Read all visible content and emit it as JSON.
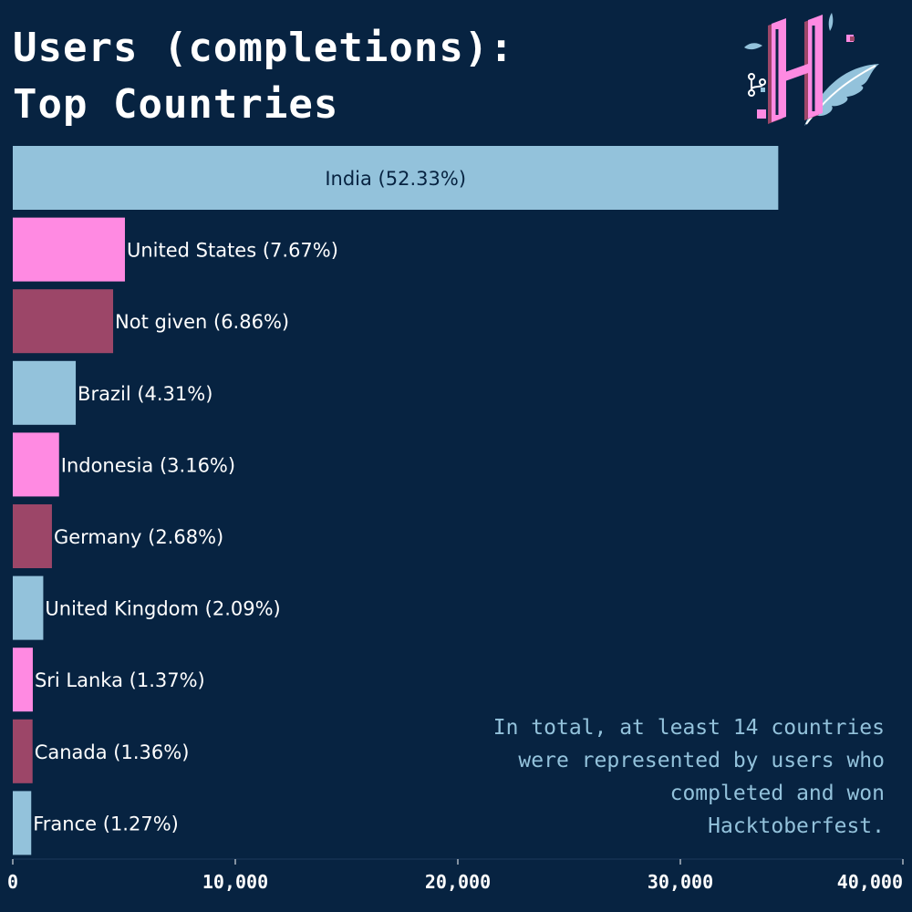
{
  "title": {
    "line1": "Users (completions):",
    "line2": "Top Countries"
  },
  "note": "In total, at least 14 countries were represented by users who completed and won Hacktoberfest.",
  "colors": {
    "background": "#072341",
    "blue": "#93c2db",
    "pink": "#ff8ae2",
    "maroon": "#9c4668",
    "text_light": "#ffffff",
    "text_dark": "#072341"
  },
  "chart_data": {
    "type": "bar",
    "orientation": "horizontal",
    "categories": [
      "India",
      "United States",
      "Not given",
      "Brazil",
      "Indonesia",
      "Germany",
      "United Kingdom",
      "Sri Lanka",
      "Canada",
      "France"
    ],
    "percent_labels": [
      "52.33%",
      "7.67%",
      "6.86%",
      "4.31%",
      "3.16%",
      "2.68%",
      "2.09%",
      "1.37%",
      "1.36%",
      "1.27%"
    ],
    "values": [
      34400,
      5040,
      4510,
      2830,
      2080,
      1760,
      1370,
      900,
      890,
      830
    ],
    "bar_colors": [
      "#93c2db",
      "#ff8ae2",
      "#9c4668",
      "#93c2db",
      "#ff8ae2",
      "#9c4668",
      "#93c2db",
      "#ff8ae2",
      "#9c4668",
      "#93c2db"
    ],
    "xlim": [
      0,
      40000
    ],
    "xticks": [
      0,
      10000,
      20000,
      30000,
      40000
    ],
    "xtick_labels": [
      "0",
      "10,000",
      "20,000",
      "30,000",
      "40,000"
    ],
    "grid": false,
    "legend": "none"
  }
}
